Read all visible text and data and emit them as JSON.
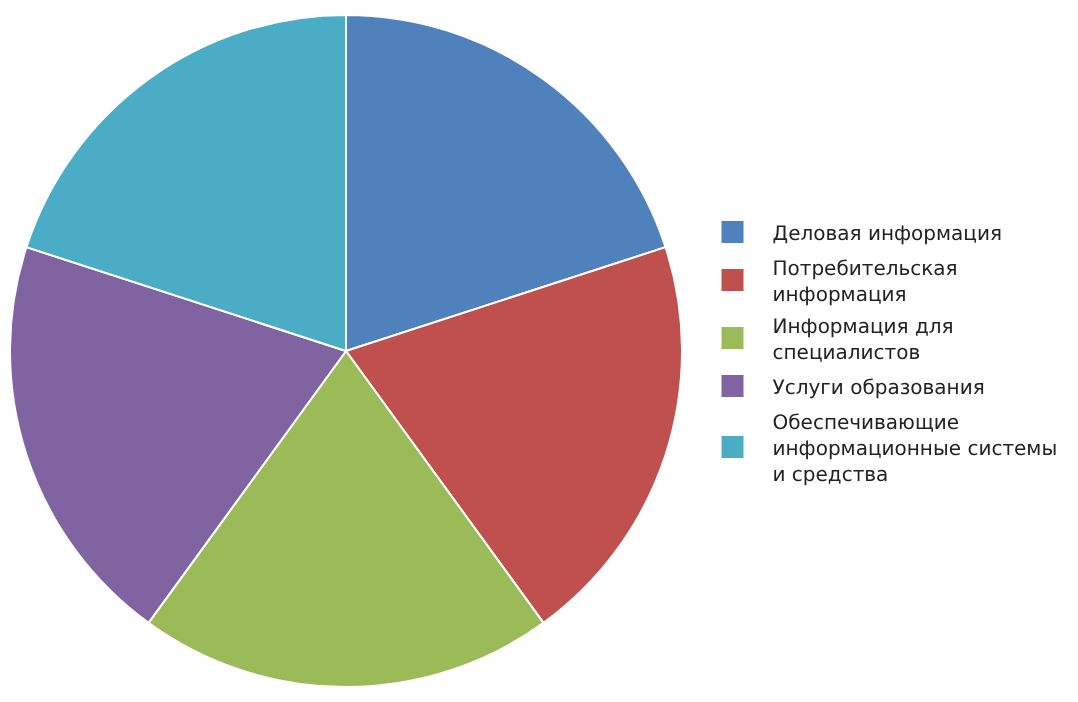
{
  "chart_data": {
    "type": "pie",
    "categories": [
      "Деловая информация",
      "Потребительская информация",
      "Информация для специалистов",
      "Услуги образования",
      "Обеспечивающие информационные системы и средства"
    ],
    "values": [
      20,
      20,
      20,
      20,
      20
    ],
    "colors": [
      "#4f81bd",
      "#c0504d",
      "#9bbb59",
      "#8064a2",
      "#4bacc6"
    ],
    "legend": "right"
  }
}
